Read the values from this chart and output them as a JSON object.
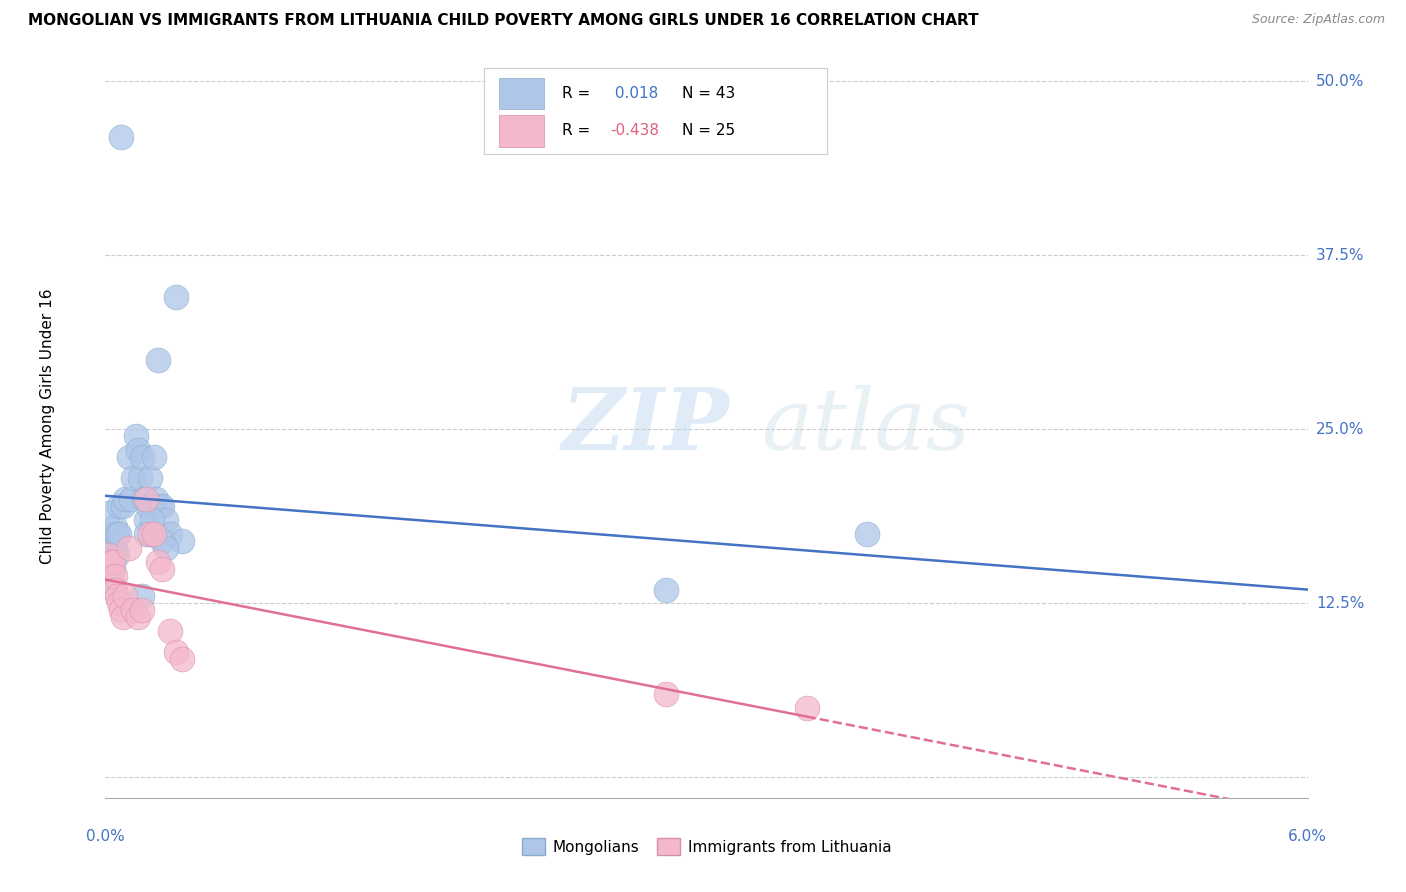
{
  "title": "MONGOLIAN VS IMMIGRANTS FROM LITHUANIA CHILD POVERTY AMONG GIRLS UNDER 16 CORRELATION CHART",
  "source": "Source: ZipAtlas.com",
  "ylabel": "Child Poverty Among Girls Under 16",
  "ytick_vals": [
    0.0,
    0.125,
    0.25,
    0.375,
    0.5
  ],
  "ytick_labels": [
    "",
    "12.5%",
    "25.0%",
    "37.5%",
    "50.0%"
  ],
  "xmin": 0.0,
  "xmax": 0.06,
  "ymin": -0.015,
  "ymax": 0.52,
  "legend_label1": "Mongolians",
  "legend_label2": "Immigrants from Lithuania",
  "blue_color": "#aec6e8",
  "pink_color": "#f4b8cb",
  "line_blue": "#4472c4",
  "line_pink": "#e07090",
  "watermark_zip": "ZIP",
  "watermark_atlas": "atlas",
  "blue_x": [
    0.0002,
    0.0003,
    0.0003,
    0.0003,
    0.0004,
    0.0004,
    0.0005,
    0.0005,
    0.0006,
    0.0006,
    0.0007,
    0.0007,
    0.0008,
    0.0009,
    0.001,
    0.0012,
    0.0013,
    0.0014,
    0.0015,
    0.0016,
    0.0017,
    0.0018,
    0.0019,
    0.002,
    0.0021,
    0.0022,
    0.0023,
    0.0024,
    0.0025,
    0.0026,
    0.0027,
    0.0028,
    0.003,
    0.0032,
    0.0035,
    0.0038,
    0.002,
    0.0023,
    0.0028,
    0.003,
    0.028,
    0.038,
    0.0018
  ],
  "blue_y": [
    0.19,
    0.175,
    0.165,
    0.155,
    0.15,
    0.14,
    0.18,
    0.165,
    0.16,
    0.175,
    0.195,
    0.175,
    0.46,
    0.195,
    0.2,
    0.23,
    0.2,
    0.215,
    0.245,
    0.235,
    0.215,
    0.23,
    0.2,
    0.185,
    0.195,
    0.215,
    0.175,
    0.23,
    0.2,
    0.3,
    0.195,
    0.195,
    0.185,
    0.175,
    0.345,
    0.17,
    0.175,
    0.185,
    0.17,
    0.165,
    0.135,
    0.175,
    0.13
  ],
  "pink_x": [
    0.0002,
    0.0003,
    0.0003,
    0.0004,
    0.0005,
    0.0005,
    0.0006,
    0.0007,
    0.0008,
    0.0009,
    0.001,
    0.0012,
    0.0014,
    0.0016,
    0.0018,
    0.002,
    0.0022,
    0.0024,
    0.0026,
    0.0028,
    0.0032,
    0.0035,
    0.0038,
    0.028,
    0.035
  ],
  "pink_y": [
    0.16,
    0.155,
    0.145,
    0.155,
    0.145,
    0.135,
    0.13,
    0.125,
    0.12,
    0.115,
    0.13,
    0.165,
    0.12,
    0.115,
    0.12,
    0.2,
    0.175,
    0.175,
    0.155,
    0.15,
    0.105,
    0.09,
    0.085,
    0.06,
    0.05
  ]
}
